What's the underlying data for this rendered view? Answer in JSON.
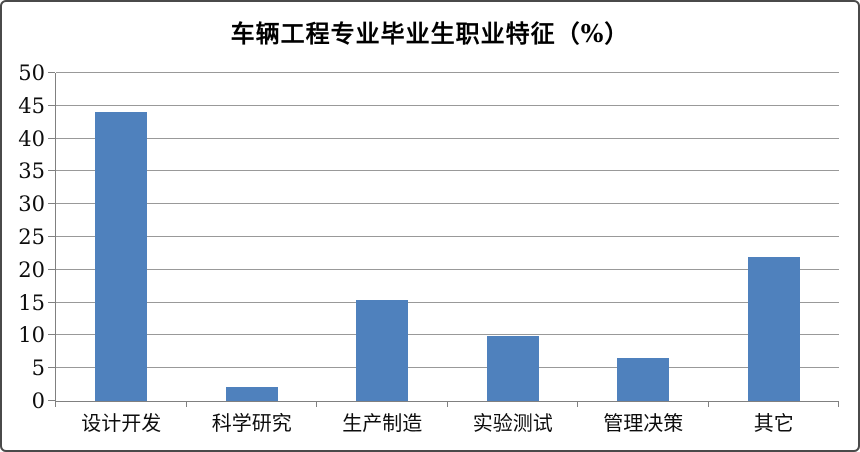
{
  "window": {
    "background": "#ffffff",
    "border_color": "#4a4a4a"
  },
  "chart_data": {
    "type": "bar",
    "title": "车辆工程专业毕业生职业特征（%）",
    "categories": [
      "设计开发",
      "科学研究",
      "生产制造",
      "实验测试",
      "管理决策",
      "其它"
    ],
    "values": [
      44,
      2.2,
      15.4,
      9.9,
      6.6,
      22
    ],
    "xlabel": "",
    "ylabel": "",
    "ylim": [
      0,
      50
    ],
    "yticks": [
      0,
      5,
      10,
      15,
      20,
      25,
      30,
      35,
      40,
      45,
      50
    ],
    "grid": true,
    "legend": "none",
    "bar_color": "#4F81BD",
    "gridline_color": "#999999",
    "axis_color": "#808080",
    "text_color": "#0d0d0d"
  }
}
